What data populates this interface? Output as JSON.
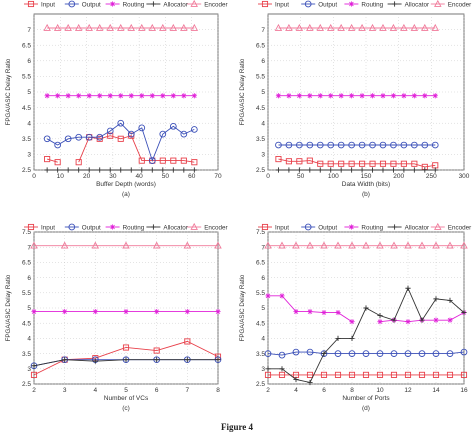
{
  "figure_caption": "Figure 4",
  "series_styles": [
    {
      "color": "#e8404a",
      "marker": "square"
    },
    {
      "color": "#3a4fb8",
      "marker": "circle"
    },
    {
      "color": "#e020d8",
      "marker": "star"
    },
    {
      "color": "#333333",
      "marker": "plus"
    },
    {
      "color": "#f07a9a",
      "marker": "triangle"
    }
  ],
  "chart_data": [
    {
      "type": "line",
      "panel_label": "(a)",
      "legend": [
        "Input",
        "Output",
        "Routing",
        "Allocator",
        "Encoder"
      ],
      "legend_position": "top",
      "xlabel": "Buffer Depth (words)",
      "ylabel": "FPGA/ASIC Delay Ratio",
      "xlim": [
        0,
        70
      ],
      "ylim": [
        2.5,
        7.5
      ],
      "xticks": [
        "0",
        "10",
        "20",
        "30",
        "40",
        "50",
        "60",
        "70"
      ],
      "yticks": [
        "2.5",
        "3",
        "3.5",
        "4",
        "4.5",
        "5",
        "5.5",
        "6",
        "6.5",
        "7"
      ],
      "grid": true,
      "x": [
        5,
        9,
        13,
        17,
        21,
        25,
        29,
        33,
        37,
        41,
        45,
        49,
        53,
        57,
        61
      ],
      "series": [
        {
          "name": "Input",
          "values": [
            2.85,
            2.75,
            null,
            2.75,
            3.55,
            3.5,
            3.6,
            3.5,
            3.6,
            2.8,
            2.8,
            2.8,
            2.8,
            2.8,
            2.75
          ]
        },
        {
          "name": "Output",
          "values": [
            3.5,
            3.3,
            3.5,
            3.55,
            3.55,
            3.55,
            3.75,
            4.0,
            3.65,
            3.85,
            2.8,
            3.65,
            3.9,
            3.65,
            3.8
          ]
        },
        {
          "name": "Routing",
          "values": [
            4.88,
            4.88,
            4.88,
            4.88,
            4.88,
            4.88,
            4.88,
            4.88,
            4.88,
            4.88,
            4.88,
            4.88,
            4.88,
            4.88,
            4.88
          ]
        },
        {
          "name": "Allocator",
          "values": [
            2.5,
            2.5,
            2.5,
            2.5,
            2.5,
            2.5,
            2.5,
            2.5,
            2.5,
            2.5,
            2.5,
            2.5,
            2.5,
            2.5,
            2.5
          ]
        },
        {
          "name": "Encoder",
          "values": [
            7.05,
            7.05,
            7.05,
            7.05,
            7.05,
            7.05,
            7.05,
            7.05,
            7.05,
            7.05,
            7.05,
            7.05,
            7.05,
            7.05,
            7.05
          ]
        }
      ]
    },
    {
      "type": "line",
      "panel_label": "(b)",
      "legend": [
        "Input",
        "Output",
        "Routing",
        "Allocator",
        "Encoder"
      ],
      "legend_position": "top",
      "xlabel": "Data Width (bits)",
      "ylabel": "FPGA/ASIC Delay Ratio",
      "xlim": [
        0,
        300
      ],
      "ylim": [
        2.5,
        7.5
      ],
      "xticks": [
        "0",
        "50",
        "100",
        "150",
        "200",
        "250",
        "300"
      ],
      "yticks": [
        "2.5",
        "3",
        "3.5",
        "4",
        "4.5",
        "5",
        "5.5",
        "6",
        "6.5",
        "7"
      ],
      "grid": true,
      "x": [
        16,
        32,
        48,
        64,
        80,
        96,
        112,
        128,
        144,
        160,
        176,
        192,
        208,
        224,
        240,
        256
      ],
      "series": [
        {
          "name": "Input",
          "values": [
            2.85,
            2.78,
            2.78,
            2.8,
            2.7,
            2.7,
            2.7,
            2.7,
            2.7,
            2.7,
            2.7,
            2.7,
            2.7,
            2.7,
            2.6,
            2.65
          ]
        },
        {
          "name": "Output",
          "values": [
            3.3,
            3.3,
            3.3,
            3.3,
            3.3,
            3.3,
            3.3,
            3.3,
            3.3,
            3.3,
            3.3,
            3.3,
            3.3,
            3.3,
            3.3,
            3.3
          ]
        },
        {
          "name": "Routing",
          "values": [
            4.88,
            4.88,
            4.88,
            4.88,
            4.88,
            4.88,
            4.88,
            4.88,
            4.88,
            4.88,
            4.88,
            4.88,
            4.88,
            4.88,
            4.88,
            4.88
          ]
        },
        {
          "name": "Allocator",
          "values": [
            2.5,
            2.5,
            2.5,
            2.5,
            2.5,
            2.5,
            2.5,
            2.5,
            2.5,
            2.5,
            2.5,
            2.5,
            2.5,
            2.5,
            2.5,
            2.5
          ]
        },
        {
          "name": "Encoder",
          "values": [
            7.05,
            7.05,
            7.05,
            7.05,
            7.05,
            7.05,
            7.05,
            7.05,
            7.05,
            7.05,
            7.05,
            7.05,
            7.05,
            7.05,
            7.05,
            7.05
          ]
        }
      ]
    },
    {
      "type": "line",
      "panel_label": "(c)",
      "legend": [
        "Input",
        "Output",
        "Routing",
        "Allocator",
        "Encoder"
      ],
      "legend_position": "top",
      "xlabel": "Number of VCs",
      "ylabel": "FPGA/ASIC Delay Ratio",
      "xlim": [
        2,
        8
      ],
      "ylim": [
        2.5,
        7.5
      ],
      "xticks": [
        "2",
        "3",
        "4",
        "5",
        "6",
        "7",
        "8"
      ],
      "yticks": [
        "2.5",
        "3",
        "3.5",
        "4",
        "4.5",
        "5",
        "5.5",
        "6",
        "6.5",
        "7",
        "7.5"
      ],
      "grid": true,
      "x": [
        2,
        3,
        4,
        5,
        6,
        7,
        8
      ],
      "series": [
        {
          "name": "Input",
          "values": [
            2.8,
            3.3,
            3.35,
            3.7,
            3.6,
            3.9,
            3.4
          ]
        },
        {
          "name": "Output",
          "values": [
            3.1,
            3.3,
            3.3,
            3.3,
            3.3,
            3.3,
            3.3
          ]
        },
        {
          "name": "Routing",
          "values": [
            4.88,
            4.88,
            4.88,
            4.88,
            4.88,
            4.88,
            4.88
          ]
        },
        {
          "name": "Allocator",
          "values": [
            3.1,
            3.3,
            3.25,
            3.3,
            3.3,
            3.3,
            3.3
          ]
        },
        {
          "name": "Encoder",
          "values": [
            7.05,
            7.05,
            7.05,
            7.05,
            7.05,
            7.05,
            7.05
          ]
        }
      ]
    },
    {
      "type": "line",
      "panel_label": "(d)",
      "legend": [
        "Input",
        "Output",
        "Routing",
        "Allocator",
        "Encoder"
      ],
      "legend_position": "top",
      "xlabel": "Number of Ports",
      "ylabel": "FPGA/ASIC Delay Ratio",
      "xlim": [
        2,
        16
      ],
      "ylim": [
        2.5,
        7.5
      ],
      "xticks": [
        "2",
        "4",
        "6",
        "8",
        "10",
        "12",
        "14",
        "16"
      ],
      "yticks": [
        "2.5",
        "3",
        "3.5",
        "4",
        "4.5",
        "5",
        "5.5",
        "6",
        "6.5",
        "7",
        "7.5"
      ],
      "grid": true,
      "x": [
        2,
        3,
        4,
        5,
        6,
        7,
        8,
        9,
        10,
        11,
        12,
        13,
        14,
        15,
        16
      ],
      "series": [
        {
          "name": "Input",
          "values": [
            2.8,
            2.8,
            2.8,
            2.8,
            2.8,
            2.8,
            2.8,
            2.8,
            2.8,
            2.8,
            2.8,
            2.8,
            2.8,
            2.8,
            2.8
          ]
        },
        {
          "name": "Output",
          "values": [
            3.5,
            3.45,
            3.55,
            3.55,
            3.5,
            3.5,
            3.5,
            3.5,
            3.5,
            3.5,
            3.5,
            3.5,
            3.5,
            3.5,
            3.55
          ]
        },
        {
          "name": "Routing",
          "values": [
            5.4,
            5.4,
            4.88,
            4.88,
            4.85,
            4.85,
            4.55,
            null,
            4.55,
            4.6,
            4.55,
            4.6,
            4.6,
            4.6,
            4.85
          ]
        },
        {
          "name": "Allocator",
          "values": [
            3.0,
            3.0,
            2.65,
            2.55,
            3.5,
            4.0,
            4.0,
            5.0,
            4.75,
            4.6,
            5.65,
            4.6,
            5.3,
            5.25,
            4.85
          ]
        },
        {
          "name": "Encoder",
          "values": [
            7.05,
            7.05,
            7.05,
            7.05,
            7.05,
            7.05,
            7.05,
            7.05,
            7.05,
            7.05,
            7.05,
            7.05,
            7.05,
            7.05,
            7.05
          ]
        }
      ]
    }
  ]
}
